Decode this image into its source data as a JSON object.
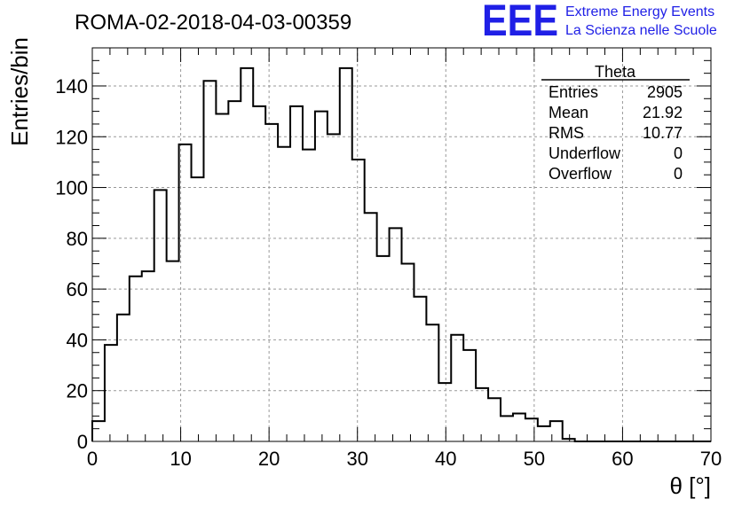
{
  "chart_data": {
    "type": "histogram",
    "title": "ROMA-02-2018-04-03-00359",
    "xlabel": "θ [°]",
    "ylabel": "Entries/bin",
    "xlim": [
      0,
      70
    ],
    "ylim": [
      0,
      155
    ],
    "bin_width": 1.4,
    "x_ticks": [
      0,
      10,
      20,
      30,
      40,
      50,
      60,
      70
    ],
    "y_ticks": [
      0,
      20,
      40,
      60,
      80,
      100,
      120,
      140
    ],
    "grid": true,
    "values": [
      8,
      38,
      50,
      65,
      67,
      99,
      71,
      117,
      104,
      142,
      129,
      134,
      147,
      132,
      125,
      116,
      132,
      115,
      130,
      121,
      147,
      111,
      90,
      73,
      84,
      70,
      57,
      46,
      23,
      42,
      36,
      21,
      17,
      10,
      11,
      9,
      6,
      8,
      1,
      0,
      0,
      0,
      0,
      0,
      0,
      0,
      0,
      0,
      0,
      0
    ],
    "stats": {
      "name": "Theta",
      "rows": [
        {
          "label": "Entries",
          "value": "2905"
        },
        {
          "label": "Mean",
          "value": "21.92"
        },
        {
          "label": "RMS",
          "value": "10.77"
        },
        {
          "label": "Underflow",
          "value": "0"
        },
        {
          "label": "Overflow",
          "value": "0"
        }
      ]
    }
  },
  "logo": {
    "letters": "EEE",
    "line1": "Extreme Energy Events",
    "line2": "La Scienza nelle Scuole",
    "color": "#1f1fe6"
  }
}
